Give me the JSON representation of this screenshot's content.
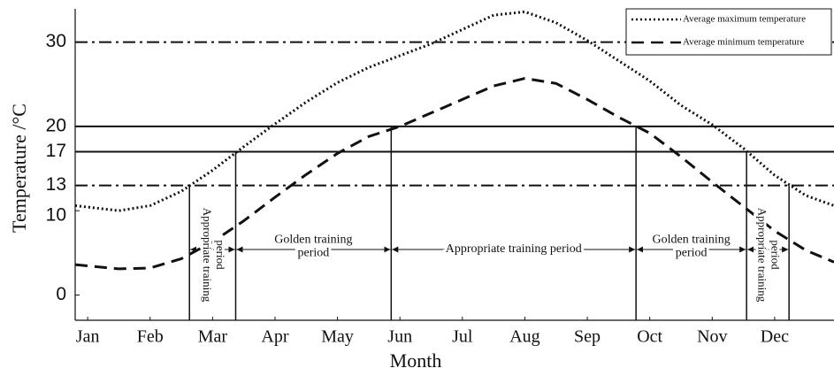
{
  "chart_data": {
    "type": "line",
    "xlabel": "Month",
    "ylabel": "Temperature /°C",
    "xlim": [
      0.8,
      12.95
    ],
    "ylim": [
      -3,
      35
    ],
    "yticks": [
      0,
      10,
      13,
      17,
      20,
      30
    ],
    "xticks": [
      {
        "value": 1,
        "label": "Jan"
      },
      {
        "value": 2,
        "label": "Feb"
      },
      {
        "value": 3,
        "label": "Mar"
      },
      {
        "value": 4,
        "label": "Apr"
      },
      {
        "value": 5,
        "label": "May"
      },
      {
        "value": 6,
        "label": "Jun"
      },
      {
        "value": 7,
        "label": "Jul"
      },
      {
        "value": 8,
        "label": "Aug"
      },
      {
        "value": 9,
        "label": "Sep"
      },
      {
        "value": 10,
        "label": "Oct"
      },
      {
        "value": 11,
        "label": "Nov"
      },
      {
        "value": 12,
        "label": "Dec"
      }
    ],
    "x": [
      0.8,
      1.5,
      2,
      2.5,
      3,
      3.5,
      4,
      4.5,
      5,
      5.5,
      6,
      6.5,
      7,
      7.5,
      8,
      8.5,
      9,
      9.5,
      10,
      10.5,
      11,
      11.5,
      12,
      12.5,
      12.95
    ],
    "series": [
      {
        "name": "Average maximum temperature",
        "color": "#111111",
        "dash": "dotted",
        "values": [
          10.6,
          10.0,
          10.6,
          12.3,
          14.8,
          17.6,
          20.3,
          22.9,
          25.2,
          27,
          28.4,
          29.8,
          31.5,
          33.2,
          33.6,
          32.3,
          30.2,
          27.8,
          25.4,
          22.5,
          20.2,
          17.4,
          14.2,
          11.8,
          10.6
        ]
      },
      {
        "name": "Average minimum temperature",
        "color": "#111111",
        "dash": "dashed",
        "values": [
          3.6,
          3.1,
          3.2,
          4.3,
          6.3,
          8.8,
          11.6,
          14.3,
          16.8,
          18.8,
          20.0,
          21.6,
          23.2,
          24.8,
          25.7,
          25.1,
          23.2,
          21.1,
          19.2,
          16.4,
          13.4,
          10.5,
          7.6,
          5.3,
          3.9
        ]
      }
    ],
    "hlines": [
      {
        "y": 30,
        "style": "dashdot"
      },
      {
        "y": 20,
        "style": "solid"
      },
      {
        "y": 17,
        "style": "solid"
      },
      {
        "y": 13,
        "style": "dashdot"
      }
    ],
    "vlines": [
      {
        "x": 2.63,
        "top": 13
      },
      {
        "x": 3.37,
        "top": 17
      },
      {
        "x": 5.86,
        "top": 20
      },
      {
        "x": 9.78,
        "top": 20
      },
      {
        "x": 11.55,
        "top": 17
      },
      {
        "x": 12.23,
        "top": 13
      }
    ],
    "periods": [
      {
        "lines": [
          "Appropriate training",
          "period"
        ],
        "x_start": 2.63,
        "x_end": 3.37,
        "rotated": true
      },
      {
        "lines": [
          "Golden training",
          "period"
        ],
        "x_start": 3.37,
        "x_end": 5.86,
        "rotated": false
      },
      {
        "lines": [
          "Appropriate training period"
        ],
        "x_start": 5.86,
        "x_end": 9.78,
        "rotated": false
      },
      {
        "lines": [
          "Golden training",
          "period"
        ],
        "x_start": 9.78,
        "x_end": 11.55,
        "rotated": false
      },
      {
        "lines": [
          "Appropriate training",
          "period"
        ],
        "x_start": 11.55,
        "x_end": 12.23,
        "rotated": true
      }
    ],
    "legend": "upper right"
  }
}
